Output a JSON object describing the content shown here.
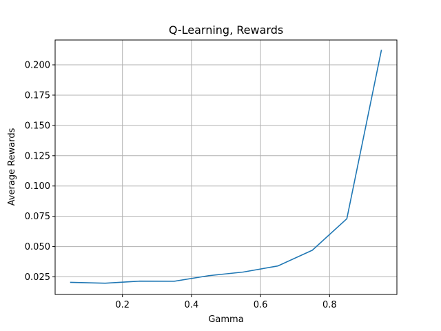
{
  "chart_data": {
    "type": "line",
    "title": "Q-Learning, Rewards",
    "xlabel": "Gamma",
    "ylabel": "Average Rewards",
    "xlim": [
      0.005,
      0.995
    ],
    "ylim": [
      0.0105,
      0.2205
    ],
    "xticks": [
      0.2,
      0.4,
      0.6,
      0.8
    ],
    "xtick_labels": [
      "0.2",
      "0.4",
      "0.6",
      "0.8"
    ],
    "yticks": [
      0.025,
      0.05,
      0.075,
      0.1,
      0.125,
      0.15,
      0.175,
      0.2
    ],
    "ytick_labels": [
      "0.025",
      "0.050",
      "0.075",
      "0.100",
      "0.125",
      "0.150",
      "0.175",
      "0.200"
    ],
    "grid": true,
    "series": [
      {
        "color": "#1f77b4",
        "x": [
          0.05,
          0.15,
          0.25,
          0.35,
          0.45,
          0.55,
          0.65,
          0.75,
          0.85,
          0.95
        ],
        "y": [
          0.0205,
          0.0198,
          0.0215,
          0.0214,
          0.026,
          0.029,
          0.034,
          0.047,
          0.073,
          0.212
        ]
      }
    ]
  }
}
